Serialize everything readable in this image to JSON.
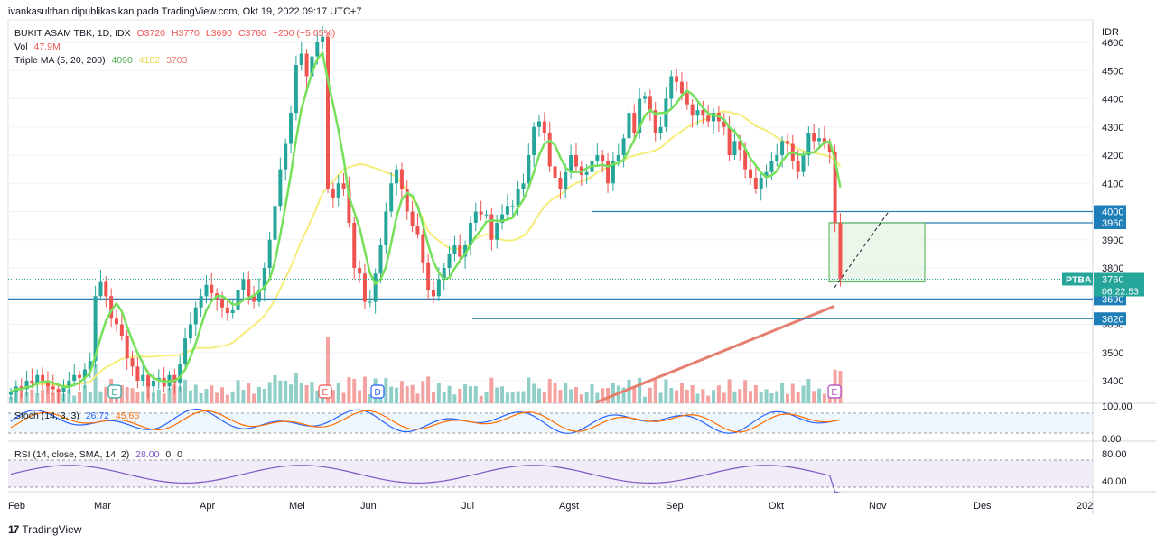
{
  "header": "ivankasulthan dipublikasikan pada TradingView.com, Okt 19, 2022 09:17 UTC+7",
  "currency": "IDR",
  "legend": {
    "symbol_line": "BUKIT ASAM TBK, 1D, IDX",
    "ohlc": {
      "o": "O3720",
      "h": "H3770",
      "l": "L3690",
      "c": "C3760",
      "chg": "−200 (−5.05%)"
    },
    "vol_label": "Vol",
    "vol_value": "47.9M",
    "ma_label": "Triple MA (5, 20, 200)",
    "ma5": "4090",
    "ma20": "4182",
    "ma200": "3703"
  },
  "stoch_legend": {
    "label": "Stoch (14, 3, 3)",
    "k": "26.72",
    "d": "45.66"
  },
  "rsi_legend": {
    "label": "RSI (14, close, SMA, 14, 2)",
    "rsi": "28.00",
    "a": "0",
    "b": "0"
  },
  "brand": "TradingView",
  "colors": {
    "up": "#26a69a",
    "down": "#ef5350",
    "ma5": "#76e05a",
    "ma20": "#f5ec7a",
    "ma200": "#e57f6e",
    "hline": "#2c7fb8",
    "target_fill": "#dcf2dc",
    "stoch_k": "#2962ff",
    "stoch_d": "#ff6d00",
    "rsi": "#7e57c2",
    "price_tag_bg": "#1e7fb8",
    "ptba_bg": "#26a69a"
  },
  "chart_data": {
    "type": "candlestick",
    "symbol": "PTBA",
    "timeframe": "1D",
    "y_axis_ticks": [
      3400,
      3500,
      3600,
      3700,
      3800,
      3900,
      4000,
      4100,
      4200,
      4300,
      4400,
      4500,
      4600
    ],
    "ylim": [
      3320,
      4680
    ],
    "x_axis_labels": [
      "Feb",
      "Mar",
      "Apr",
      "Mei",
      "Jun",
      "Jul",
      "Agst",
      "Sep",
      "Okt",
      "Nov",
      "Des",
      "202"
    ],
    "closes": [
      3360,
      3380,
      3370,
      3400,
      3390,
      3420,
      3400,
      3380,
      3370,
      3360,
      3380,
      3400,
      3420,
      3410,
      3440,
      3470,
      3700,
      3750,
      3700,
      3620,
      3600,
      3560,
      3480,
      3450,
      3400,
      3420,
      3380,
      3400,
      3410,
      3380,
      3420,
      3390,
      3460,
      3550,
      3600,
      3660,
      3700,
      3740,
      3710,
      3690,
      3660,
      3640,
      3650,
      3720,
      3760,
      3700,
      3680,
      3720,
      3800,
      3900,
      4020,
      4150,
      4240,
      4350,
      4520,
      4560,
      4480,
      4550,
      4600,
      4620,
      4080,
      4050,
      4100,
      4080,
      3960,
      3800,
      3780,
      3680,
      3680,
      3780,
      3880,
      4000,
      4100,
      4150,
      4080,
      4000,
      3950,
      3920,
      3820,
      3720,
      3700,
      3760,
      3800,
      3850,
      3880,
      3840,
      3880,
      3960,
      4000,
      3990,
      3990,
      3900,
      3960,
      3990,
      4020,
      4020,
      4080,
      4100,
      4200,
      4300,
      4320,
      4280,
      4160,
      4120,
      4080,
      4140,
      4200,
      4160,
      4130,
      4140,
      4180,
      4200,
      4180,
      4100,
      4180,
      4200,
      4260,
      4350,
      4280,
      4400,
      4410,
      4360,
      4280,
      4300,
      4400,
      4480,
      4460,
      4420,
      4380,
      4340,
      4360,
      4340,
      4320,
      4350,
      4320,
      4300,
      4200,
      4250,
      4220,
      4150,
      4120,
      4080,
      4120,
      4140,
      4180,
      4200,
      4250,
      4240,
      4180,
      4140,
      4200,
      4280,
      4250,
      4260,
      4240,
      4210,
      3960,
      3760
    ],
    "volume_scale_note": "volume shown as relative bars",
    "horizontal_levels": [
      {
        "price": 4000,
        "label": "4000"
      },
      {
        "price": 3960,
        "label": "3960"
      },
      {
        "price": 3690,
        "label": "3690"
      },
      {
        "price": 3620,
        "label": "3620"
      }
    ],
    "last_price": {
      "label": "PTBA",
      "price": "3760",
      "countdown": "06:22:53"
    },
    "ma_values": {
      "ma5": 4090,
      "ma20": 4182,
      "ma200": 3703
    },
    "target_box": {
      "from": 3750,
      "to": 3960
    },
    "stoch": {
      "k": 26.72,
      "d": 45.66,
      "axis": [
        "100.00",
        "0.00"
      ]
    },
    "rsi": {
      "value": 28.0,
      "axis": [
        "80.00",
        "40.00"
      ]
    },
    "event_markers": [
      "E",
      "E",
      "D",
      "E"
    ]
  }
}
